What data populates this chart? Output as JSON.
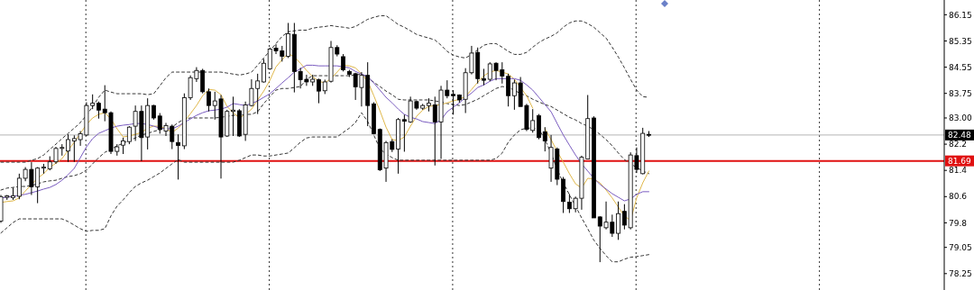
{
  "chart_data": {
    "type": "candlestick",
    "tick_labels": "y",
    "categories": [
      null,
      null,
      null,
      null,
      null,
      null,
      null,
      null,
      null,
      null,
      null,
      null,
      null,
      null,
      null,
      null,
      null,
      null,
      null,
      null,
      null,
      null,
      null,
      null,
      null,
      null,
      null,
      null,
      null,
      null,
      null,
      null,
      null,
      null,
      null,
      null,
      null,
      null,
      null,
      null,
      null,
      null,
      null,
      null,
      null,
      null,
      null,
      null,
      null,
      null,
      null,
      null,
      null,
      null,
      null,
      null,
      null,
      null,
      null,
      null,
      null,
      null,
      null,
      null,
      null,
      null,
      null,
      null,
      null,
      null,
      null,
      null,
      null,
      null,
      null,
      null,
      null,
      null,
      null,
      null,
      null,
      null,
      null,
      null,
      null,
      null,
      null,
      null,
      null,
      null,
      null,
      null,
      null,
      null,
      null,
      null,
      null,
      null,
      null,
      null,
      null,
      null,
      null,
      null,
      null,
      null,
      null
    ],
    "ohlc": [
      [
        79.85,
        80.65,
        79.8,
        80.6
      ],
      [
        80.58,
        80.65,
        80.5,
        80.62
      ],
      [
        80.57,
        80.87,
        80.5,
        80.62
      ],
      [
        80.61,
        81.3,
        80.52,
        81.16
      ],
      [
        81.16,
        81.5,
        81.07,
        81.43
      ],
      [
        81.43,
        81.65,
        80.65,
        80.9
      ],
      [
        80.9,
        81.5,
        80.4,
        81.47
      ],
      [
        81.47,
        81.6,
        81.3,
        81.5
      ],
      [
        81.45,
        81.83,
        81.4,
        81.66
      ],
      [
        81.66,
        82.12,
        81.6,
        82.07
      ],
      [
        82.07,
        82.2,
        81.85,
        82.1
      ],
      [
        81.99,
        82.5,
        81.66,
        82.34
      ],
      [
        82.3,
        82.47,
        81.66,
        82.37
      ],
      [
        82.34,
        82.6,
        82.15,
        82.52
      ],
      [
        82.48,
        83.48,
        82.45,
        83.38
      ],
      [
        83.38,
        83.72,
        83.27,
        83.45
      ],
      [
        83.45,
        83.5,
        82.98,
        83.24
      ],
      [
        83.27,
        84.0,
        82.9,
        83.16
      ],
      [
        83.16,
        83.2,
        81.9,
        81.98
      ],
      [
        81.98,
        82.2,
        81.85,
        82.12
      ],
      [
        82.17,
        82.4,
        81.9,
        82.3
      ],
      [
        82.28,
        82.75,
        82.2,
        82.72
      ],
      [
        82.75,
        83.38,
        82.3,
        83.2
      ],
      [
        83.2,
        83.38,
        81.68,
        82.4
      ],
      [
        82.42,
        83.6,
        82.04,
        83.38
      ],
      [
        83.38,
        83.4,
        82.95,
        83.0
      ],
      [
        83.06,
        83.15,
        82.52,
        82.65
      ],
      [
        82.6,
        82.85,
        82.45,
        82.77
      ],
      [
        82.75,
        82.8,
        82.05,
        82.28
      ],
      [
        82.25,
        82.5,
        81.12,
        82.16
      ],
      [
        82.15,
        83.75,
        82.05,
        83.62
      ],
      [
        83.62,
        84.3,
        83.55,
        84.23
      ],
      [
        84.2,
        84.55,
        84.1,
        84.45
      ],
      [
        84.45,
        84.5,
        83.75,
        83.8
      ],
      [
        83.8,
        83.9,
        83.2,
        83.38
      ],
      [
        83.38,
        83.8,
        82.95,
        83.52
      ],
      [
        83.58,
        83.7,
        81.15,
        82.42
      ],
      [
        82.45,
        83.25,
        82.42,
        83.2
      ],
      [
        83.2,
        83.65,
        82.45,
        83.24
      ],
      [
        83.22,
        83.27,
        82.42,
        82.45
      ],
      [
        82.5,
        83.5,
        82.3,
        83.4
      ],
      [
        83.38,
        84.18,
        83.35,
        83.9
      ],
      [
        83.9,
        84.35,
        83.12,
        84.13
      ],
      [
        84.1,
        84.8,
        84.08,
        84.67
      ],
      [
        84.5,
        85.15,
        84.47,
        85.1
      ],
      [
        85.13,
        85.25,
        84.95,
        85.05
      ],
      [
        85.05,
        85.2,
        84.72,
        84.88
      ],
      [
        84.88,
        85.9,
        84.83,
        85.57
      ],
      [
        85.55,
        85.9,
        83.78,
        84.42
      ],
      [
        84.42,
        84.53,
        83.9,
        84.17
      ],
      [
        84.18,
        84.32,
        83.98,
        84.1
      ],
      [
        84.1,
        84.32,
        83.98,
        84.18
      ],
      [
        84.17,
        84.2,
        83.45,
        83.82
      ],
      [
        83.83,
        84.17,
        83.73,
        84.1
      ],
      [
        84.12,
        85.35,
        84.08,
        85.15
      ],
      [
        85.15,
        85.22,
        84.88,
        84.95
      ],
      [
        84.87,
        84.95,
        84.42,
        84.47
      ],
      [
        84.42,
        84.47,
        84.25,
        84.33
      ],
      [
        84.35,
        84.38,
        83.55,
        83.95
      ],
      [
        83.93,
        84.4,
        83.35,
        84.3
      ],
      [
        84.3,
        84.7,
        82.75,
        83.38
      ],
      [
        83.43,
        83.48,
        82.5,
        82.52
      ],
      [
        82.65,
        82.68,
        81.38,
        81.42
      ],
      [
        81.47,
        82.3,
        81.05,
        82.25
      ],
      [
        82.28,
        82.35,
        81.96,
        82.04
      ],
      [
        82.05,
        83.0,
        81.3,
        82.95
      ],
      [
        82.95,
        83.1,
        81.97,
        82.9
      ],
      [
        82.88,
        83.65,
        82.85,
        83.52
      ],
      [
        83.5,
        83.53,
        83.25,
        83.3
      ],
      [
        83.3,
        83.43,
        83.25,
        83.38
      ],
      [
        83.38,
        83.6,
        83.2,
        83.45
      ],
      [
        83.4,
        83.65,
        81.55,
        82.88
      ],
      [
        82.88,
        83.98,
        81.75,
        83.85
      ],
      [
        83.85,
        84.15,
        83.6,
        83.68
      ],
      [
        83.72,
        83.85,
        83.1,
        83.68
      ],
      [
        83.7,
        83.72,
        83.47,
        83.55
      ],
      [
        83.57,
        84.52,
        83.15,
        84.38
      ],
      [
        84.38,
        85.2,
        84.33,
        84.98
      ],
      [
        85.0,
        85.15,
        84.05,
        84.2
      ],
      [
        84.2,
        84.5,
        84.0,
        84.15
      ],
      [
        84.18,
        84.7,
        84.12,
        84.65
      ],
      [
        84.67,
        84.7,
        84.15,
        84.45
      ],
      [
        84.47,
        84.7,
        84.05,
        84.28
      ],
      [
        84.27,
        84.35,
        83.35,
        83.68
      ],
      [
        83.68,
        84.17,
        83.25,
        84.07
      ],
      [
        84.07,
        84.25,
        83.35,
        83.35
      ],
      [
        83.38,
        83.43,
        82.6,
        82.65
      ],
      [
        82.62,
        83.27,
        82.55,
        82.92
      ],
      [
        83.07,
        83.12,
        82.35,
        82.4
      ],
      [
        82.58,
        82.72,
        81.98,
        82.3
      ],
      [
        81.47,
        82.48,
        81.05,
        82.1
      ],
      [
        82.05,
        82.1,
        80.95,
        81.13
      ],
      [
        81.13,
        81.2,
        80.1,
        80.45
      ],
      [
        80.43,
        80.68,
        80.1,
        80.23
      ],
      [
        80.23,
        80.6,
        80.12,
        80.55
      ],
      [
        80.55,
        81.85,
        80.2,
        81.8
      ],
      [
        81.75,
        83.7,
        81.75,
        82.98
      ],
      [
        83.0,
        83.05,
        79.95,
        79.95
      ],
      [
        79.98,
        80.0,
        78.6,
        79.7
      ],
      [
        79.65,
        80.45,
        79.6,
        79.82
      ],
      [
        79.82,
        80.05,
        79.37,
        79.48
      ],
      [
        79.48,
        80.45,
        79.28,
        80.08
      ],
      [
        80.15,
        80.37,
        79.6,
        79.73
      ],
      [
        79.65,
        81.95,
        79.6,
        81.87
      ],
      [
        81.85,
        82.1,
        81.32,
        81.43
      ],
      [
        81.3,
        82.7,
        81.28,
        82.53
      ],
      [
        82.5,
        82.6,
        82.42,
        82.48
      ]
    ],
    "series": [
      {
        "type": "line",
        "color": "#333333",
        "line_style": "dashed",
        "values": [
          81.65,
          81.65,
          81.65,
          81.65,
          81.65,
          81.71,
          81.76,
          81.87,
          82.04,
          82.2,
          82.37,
          82.53,
          82.69,
          82.86,
          83.08,
          83.35,
          83.63,
          83.85,
          83.79,
          83.74,
          83.74,
          83.74,
          83.74,
          83.74,
          83.71,
          83.74,
          83.98,
          84.23,
          84.4,
          84.4,
          84.4,
          84.4,
          84.4,
          84.4,
          84.4,
          84.4,
          84.4,
          84.37,
          84.34,
          84.31,
          84.34,
          84.4,
          84.61,
          84.83,
          85.05,
          85.27,
          85.49,
          85.63,
          85.66,
          85.68,
          85.68,
          85.74,
          85.77,
          85.79,
          85.82,
          85.79,
          85.77,
          85.74,
          85.79,
          85.9,
          86.01,
          86.07,
          86.12,
          86.12,
          85.99,
          85.85,
          85.77,
          85.66,
          85.55,
          85.49,
          85.44,
          85.38,
          85.22,
          85.03,
          84.92,
          84.86,
          84.83,
          84.94,
          85.08,
          85.22,
          85.27,
          85.27,
          85.16,
          85.03,
          84.94,
          84.94,
          85.0,
          85.16,
          85.3,
          85.41,
          85.49,
          85.6,
          85.77,
          85.9,
          85.96,
          85.96,
          85.88,
          85.77,
          85.6,
          85.44,
          85.16,
          84.86,
          84.53,
          84.18,
          83.85,
          83.65,
          83.63
        ]
      },
      {
        "type": "line",
        "color": "#333333",
        "line_style": "dashed",
        "values": [
          80.8,
          80.86,
          80.88,
          80.91,
          80.91,
          80.94,
          80.99,
          81.05,
          81.08,
          81.1,
          81.16,
          81.21,
          81.24,
          81.3,
          81.41,
          81.6,
          81.79,
          81.95,
          82.04,
          82.15,
          82.23,
          82.31,
          82.39,
          82.48,
          82.53,
          82.59,
          82.64,
          82.67,
          82.72,
          82.86,
          82.97,
          83.0,
          83.0,
          83.0,
          83.0,
          83.0,
          83.02,
          83.05,
          83.08,
          83.08,
          83.11,
          83.11,
          83.19,
          83.44,
          83.65,
          83.85,
          83.9,
          83.9,
          83.93,
          83.96,
          84.18,
          84.29,
          84.29,
          84.29,
          84.29,
          84.29,
          84.29,
          84.29,
          84.31,
          84.34,
          84.23,
          84.09,
          83.96,
          83.82,
          83.71,
          83.57,
          83.55,
          83.55,
          83.55,
          83.55,
          83.55,
          83.52,
          83.49,
          83.44,
          83.41,
          83.38,
          83.41,
          83.49,
          83.57,
          83.68,
          83.79,
          83.9,
          83.96,
          83.93,
          83.85,
          83.74,
          83.68,
          83.57,
          83.49,
          83.41,
          83.35,
          83.24,
          83.13,
          83.02,
          82.94,
          82.83,
          82.75,
          82.64,
          82.5,
          82.34,
          82.15,
          81.93,
          81.73,
          81.6,
          81.49,
          81.38,
          81.3
        ]
      },
      {
        "type": "line",
        "color": "#333333",
        "line_style": "dashed",
        "values": [
          79.49,
          79.65,
          79.81,
          79.92,
          79.92,
          79.92,
          79.92,
          79.92,
          79.92,
          79.92,
          79.92,
          79.84,
          79.73,
          79.62,
          79.54,
          79.57,
          79.57,
          79.62,
          80.01,
          80.31,
          80.5,
          80.72,
          80.91,
          81.02,
          81.1,
          81.21,
          81.32,
          81.46,
          81.6,
          81.73,
          81.65,
          81.65,
          81.65,
          81.65,
          81.65,
          81.65,
          81.65,
          81.65,
          81.65,
          81.71,
          81.79,
          81.87,
          81.87,
          81.84,
          81.84,
          81.87,
          81.9,
          81.93,
          82.09,
          82.26,
          82.39,
          82.42,
          82.42,
          82.42,
          82.42,
          82.42,
          82.56,
          82.69,
          82.86,
          83.16,
          82.89,
          82.48,
          82.06,
          81.9,
          81.79,
          81.71,
          81.71,
          81.71,
          81.71,
          81.71,
          81.71,
          81.71,
          81.71,
          81.71,
          81.71,
          81.71,
          81.71,
          81.71,
          81.71,
          81.71,
          81.71,
          81.76,
          81.93,
          82.26,
          82.48,
          82.64,
          82.69,
          82.69,
          82.67,
          82.34,
          81.93,
          81.43,
          81.02,
          80.66,
          80.31,
          79.95,
          79.62,
          79.27,
          79.02,
          78.8,
          78.61,
          78.61,
          78.69,
          78.75,
          78.77,
          78.8,
          78.83
        ]
      },
      {
        "type": "line",
        "color": "#e0b84a",
        "line_style": "solid",
        "values": [
          80.42,
          80.45,
          80.47,
          80.56,
          80.77,
          80.97,
          81.16,
          81.3,
          81.49,
          81.62,
          81.76,
          82.01,
          82.26,
          82.53,
          82.8,
          83.0,
          83.11,
          83.16,
          82.97,
          82.67,
          82.42,
          82.45,
          82.5,
          82.56,
          82.69,
          82.75,
          82.75,
          82.67,
          82.56,
          82.69,
          82.89,
          83.13,
          83.38,
          83.68,
          83.87,
          83.85,
          83.71,
          83.35,
          83.16,
          83.0,
          83.11,
          83.27,
          83.55,
          83.82,
          84.15,
          84.56,
          84.78,
          84.97,
          84.86,
          84.67,
          84.45,
          84.26,
          84.12,
          84.07,
          84.2,
          84.4,
          84.61,
          84.59,
          84.53,
          84.34,
          84.12,
          83.68,
          83.22,
          82.72,
          82.34,
          82.31,
          82.42,
          82.75,
          83.05,
          83.24,
          83.35,
          83.38,
          83.41,
          83.46,
          83.52,
          83.57,
          83.65,
          83.87,
          84.09,
          84.29,
          84.4,
          84.45,
          84.4,
          84.34,
          84.18,
          83.93,
          83.68,
          83.3,
          null,
          82.67,
          82.34,
          81.98,
          81.65,
          81.3,
          80.99,
          80.86,
          81.16,
          81.13,
          81.02,
          80.8,
          80.56,
          80.28,
          80.01,
          79.87,
          80.56,
          81.02,
          81.38
        ]
      },
      {
        "type": "line",
        "color": "#7a5cc0",
        "line_style": "solid",
        "values": [
          80.56,
          80.58,
          80.61,
          80.64,
          80.67,
          80.72,
          80.77,
          80.83,
          80.88,
          80.97,
          81.1,
          81.27,
          81.46,
          81.79,
          82.12,
          82.37,
          82.53,
          82.61,
          82.69,
          82.75,
          82.78,
          82.8,
          82.83,
          82.83,
          82.8,
          82.75,
          82.69,
          82.67,
          82.67,
          82.75,
          82.86,
          82.97,
          83.08,
          83.16,
          83.22,
          83.24,
          83.27,
          83.33,
          83.44,
          83.41,
          83.38,
          83.44,
          83.52,
          83.63,
          83.74,
          83.9,
          84.07,
          84.23,
          84.4,
          84.5,
          84.61,
          84.61,
          84.59,
          84.59,
          84.59,
          84.59,
          84.56,
          84.53,
          84.42,
          84.34,
          84.26,
          84.07,
          83.85,
          83.63,
          83.46,
          83.27,
          83.11,
          83.02,
          82.97,
          82.89,
          82.86,
          82.83,
          82.94,
          83.19,
          83.33,
          83.46,
          83.63,
          83.76,
          83.93,
          84.01,
          84.12,
          84.2,
          84.2,
          84.2,
          84.2,
          84.15,
          84.01,
          83.85,
          83.63,
          83.41,
          83.19,
          82.83,
          82.48,
          82.17,
          81.87,
          81.6,
          81.38,
          81.16,
          80.97,
          80.83,
          80.69,
          80.58,
          80.47,
          80.53,
          80.67,
          80.75,
          80.75
        ]
      }
    ],
    "ref_lines": [
      {
        "axis": "y",
        "value": 82.48,
        "label": "82.48",
        "color": "#b4b4b4"
      },
      {
        "axis": "y",
        "value": 81.69,
        "label": "81.69",
        "color": "#e01010"
      }
    ],
    "ylim": [
      77.75,
      86.6
    ],
    "yticks": [
      86.15,
      85.35,
      84.55,
      83.75,
      {
        "value": 83,
        "label": "83.00"
      },
      82.2,
      81.4,
      80.6,
      79.8,
      79.05,
      78.25
    ]
  }
}
